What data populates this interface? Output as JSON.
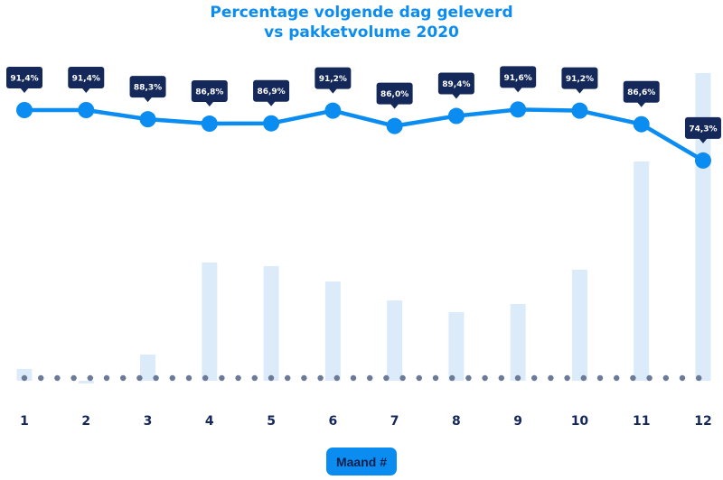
{
  "chart_data": {
    "type": "line+bar",
    "title": "Percentage volgende dag geleverd vs pakketvolume 2020",
    "title_lines": [
      "Percentage volgende dag geleverd",
      "vs pakketvolume 2020"
    ],
    "xlabel": "Maand #",
    "categories": [
      "1",
      "2",
      "3",
      "4",
      "5",
      "6",
      "7",
      "8",
      "9",
      "10",
      "11",
      "12"
    ],
    "series": [
      {
        "type": "line",
        "values": [
          91.4,
          91.4,
          88.3,
          86.8,
          86.9,
          91.2,
          86.0,
          89.4,
          91.6,
          91.2,
          86.6,
          74.3
        ],
        "labels": [
          "91,4%",
          "91,4%",
          "88,3%",
          "86,8%",
          "86,9%",
          "91,2%",
          "86,0%",
          "89,4%",
          "91,6%",
          "91,2%",
          "86,6%",
          "74,3%"
        ],
        "color": "#0a8cf0"
      },
      {
        "type": "bar",
        "values": [
          13,
          -3,
          29,
          131,
          127,
          110,
          89,
          76,
          85,
          123,
          243,
          341
        ],
        "color": "#dcebf9"
      }
    ],
    "grid": false,
    "colors": {
      "title": "#0a8cf0",
      "tooltip": "#14285a",
      "baseline_dots": "#6b7a96"
    }
  }
}
